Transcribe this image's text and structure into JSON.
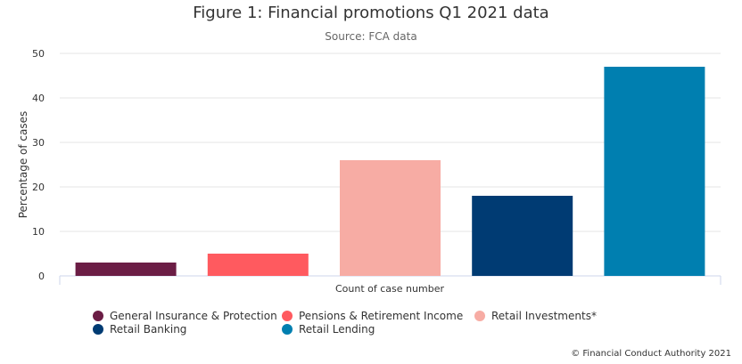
{
  "chart_data": {
    "type": "bar",
    "title": "Figure 1: Financial promotions Q1 2021 data",
    "subtitle": "Source: FCA data",
    "xlabel": "Count of case number",
    "ylabel": "Percentage of cases",
    "ylim": [
      0,
      50
    ],
    "yticks": [
      "0",
      "10",
      "20",
      "30",
      "40",
      "50"
    ],
    "grid": true,
    "legend_position": "bottom-left",
    "series": [
      {
        "name": "General Insurance & Protection",
        "value": 3,
        "color": "#6b1d45"
      },
      {
        "name": "Pensions & Retirement Income",
        "value": 5,
        "color": "#ff5a5f"
      },
      {
        "name": "Retail Investments*",
        "value": 26,
        "color": "#f7aca4"
      },
      {
        "name": "Retail Banking",
        "value": 18,
        "color": "#003b73"
      },
      {
        "name": "Retail Lending",
        "value": 47,
        "color": "#007fb0"
      }
    ]
  },
  "credit": "© Financial Conduct Authority 2021"
}
